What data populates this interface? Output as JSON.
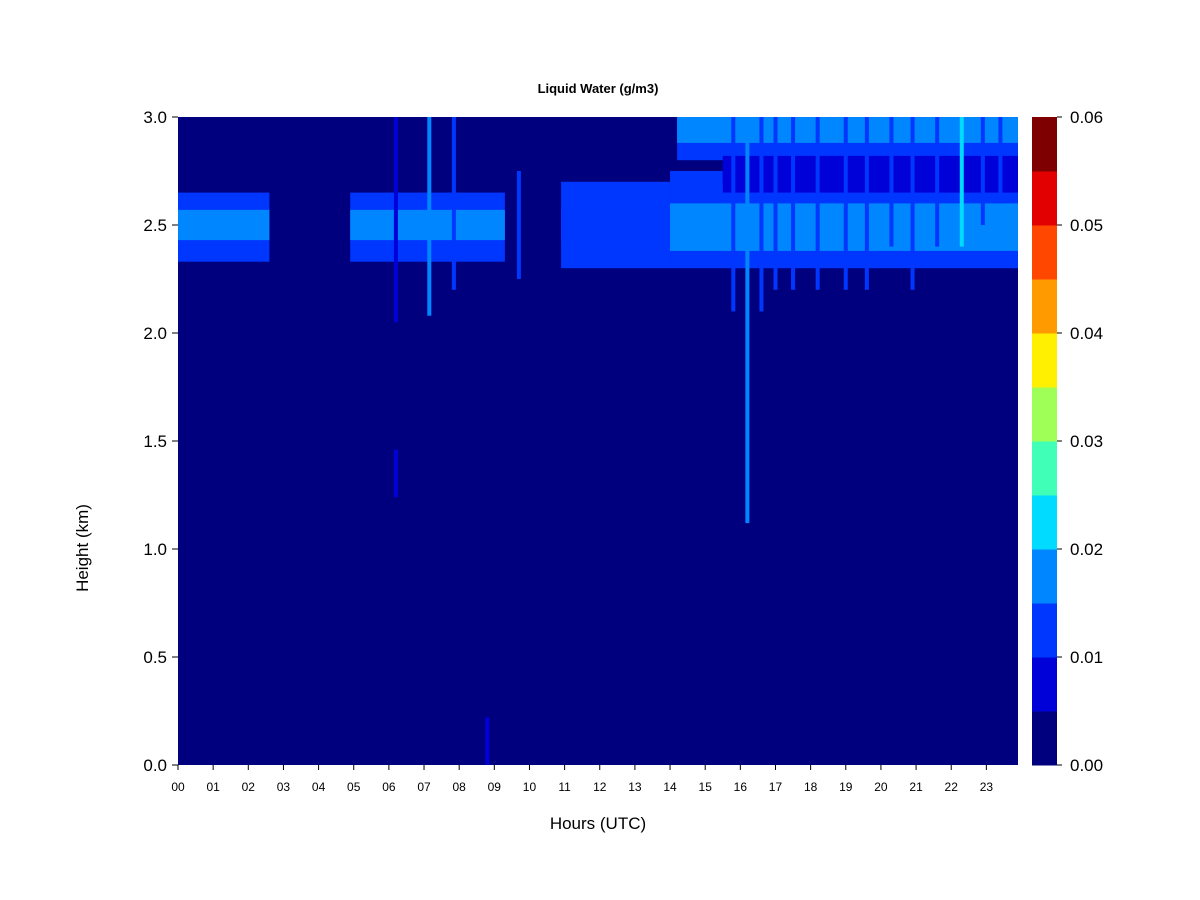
{
  "chart_data": {
    "type": "heatmap",
    "title": "Liquid Water (g/m3)",
    "xlabel": "Hours (UTC)",
    "ylabel": "Height (km)",
    "xlim": [
      0,
      23.9
    ],
    "ylim": [
      0,
      3.0
    ],
    "x_ticks": [
      "00",
      "01",
      "02",
      "03",
      "04",
      "05",
      "06",
      "07",
      "08",
      "09",
      "10",
      "11",
      "12",
      "13",
      "14",
      "15",
      "16",
      "17",
      "18",
      "19",
      "20",
      "21",
      "22",
      "23"
    ],
    "y_ticks": [
      "0.0",
      "0.5",
      "1.0",
      "1.5",
      "2.0",
      "2.5",
      "3.0"
    ],
    "colorbar": {
      "ticks": [
        "0.00",
        "0.01",
        "0.02",
        "0.03",
        "0.04",
        "0.05",
        "0.06"
      ],
      "levels": [
        0.0,
        0.005,
        0.01,
        0.015,
        0.02,
        0.025,
        0.03,
        0.035,
        0.04,
        0.045,
        0.05,
        0.055,
        0.06
      ],
      "colors": [
        "#00007f",
        "#0000d9",
        "#0037ff",
        "#0087ff",
        "#00dbff",
        "#40ffb7",
        "#9fff57",
        "#ffef00",
        "#ff9b00",
        "#ff4700",
        "#e30000",
        "#7f0000"
      ]
    },
    "background_value": 0.002,
    "features": [
      {
        "desc": "cloud layer 00-02.5h",
        "x": [
          0.0,
          2.6
        ],
        "y": [
          2.33,
          2.65
        ],
        "core_y": [
          2.43,
          2.57
        ],
        "value": 0.011,
        "core": 0.016
      },
      {
        "desc": "cloud layer 05-09h",
        "x": [
          4.9,
          9.3
        ],
        "y": [
          2.33,
          2.65
        ],
        "core_y": [
          2.43,
          2.57
        ],
        "value": 0.011,
        "core": 0.015
      },
      {
        "desc": "cloud layer 11-14h",
        "x": [
          10.9,
          14.0
        ],
        "y": [
          2.3,
          2.7
        ],
        "core_y": [
          2.42,
          2.58
        ],
        "value": 0.01,
        "core": 0.013
      },
      {
        "desc": "cloud layer 14-24h",
        "x": [
          14.0,
          23.9
        ],
        "y": [
          2.3,
          2.75
        ],
        "core_y": [
          2.38,
          2.6
        ],
        "value": 0.01,
        "core": 0.017
      },
      {
        "desc": "upper layer 14-24h",
        "x": [
          14.2,
          23.9
        ],
        "y": [
          2.8,
          3.0
        ],
        "core_y": [
          2.88,
          3.0
        ],
        "value": 0.01,
        "core": 0.015
      },
      {
        "desc": "gap layer 15.5-24h",
        "x": [
          15.5,
          23.9
        ],
        "y": [
          2.65,
          2.82
        ],
        "core_y": [
          2.7,
          2.78
        ],
        "value": 0.009,
        "core": 0.009
      }
    ],
    "streaks": [
      {
        "x": 6.2,
        "y": [
          2.05,
          3.0
        ],
        "value": 0.009
      },
      {
        "x": 6.2,
        "y": [
          1.24,
          1.46
        ],
        "value": 0.006
      },
      {
        "x": 7.15,
        "y": [
          2.08,
          3.0
        ],
        "value": 0.018
      },
      {
        "x": 7.85,
        "y": [
          2.2,
          3.0
        ],
        "value": 0.011
      },
      {
        "x": 9.7,
        "y": [
          2.25,
          2.75
        ],
        "value": 0.01
      },
      {
        "x": 8.8,
        "y": [
          0.0,
          0.22
        ],
        "value": 0.006
      },
      {
        "x": 15.8,
        "y": [
          2.1,
          3.0
        ],
        "value": 0.013
      },
      {
        "x": 16.2,
        "y": [
          1.12,
          3.0
        ],
        "value": 0.019
      },
      {
        "x": 16.6,
        "y": [
          2.1,
          3.0
        ],
        "value": 0.013
      },
      {
        "x": 17.0,
        "y": [
          2.2,
          3.0
        ],
        "value": 0.011
      },
      {
        "x": 17.5,
        "y": [
          2.2,
          3.0
        ],
        "value": 0.012
      },
      {
        "x": 18.2,
        "y": [
          2.2,
          3.0
        ],
        "value": 0.011
      },
      {
        "x": 19.0,
        "y": [
          2.2,
          3.0
        ],
        "value": 0.012
      },
      {
        "x": 19.6,
        "y": [
          2.2,
          3.0
        ],
        "value": 0.011
      },
      {
        "x": 20.3,
        "y": [
          2.4,
          3.0
        ],
        "value": 0.011
      },
      {
        "x": 20.9,
        "y": [
          2.2,
          3.0
        ],
        "value": 0.011
      },
      {
        "x": 21.6,
        "y": [
          2.4,
          3.0
        ],
        "value": 0.012
      },
      {
        "x": 22.3,
        "y": [
          2.4,
          3.0
        ],
        "value": 0.022
      },
      {
        "x": 22.9,
        "y": [
          2.5,
          3.0
        ],
        "value": 0.014
      },
      {
        "x": 23.4,
        "y": [
          2.6,
          3.0
        ],
        "value": 0.013
      }
    ]
  }
}
